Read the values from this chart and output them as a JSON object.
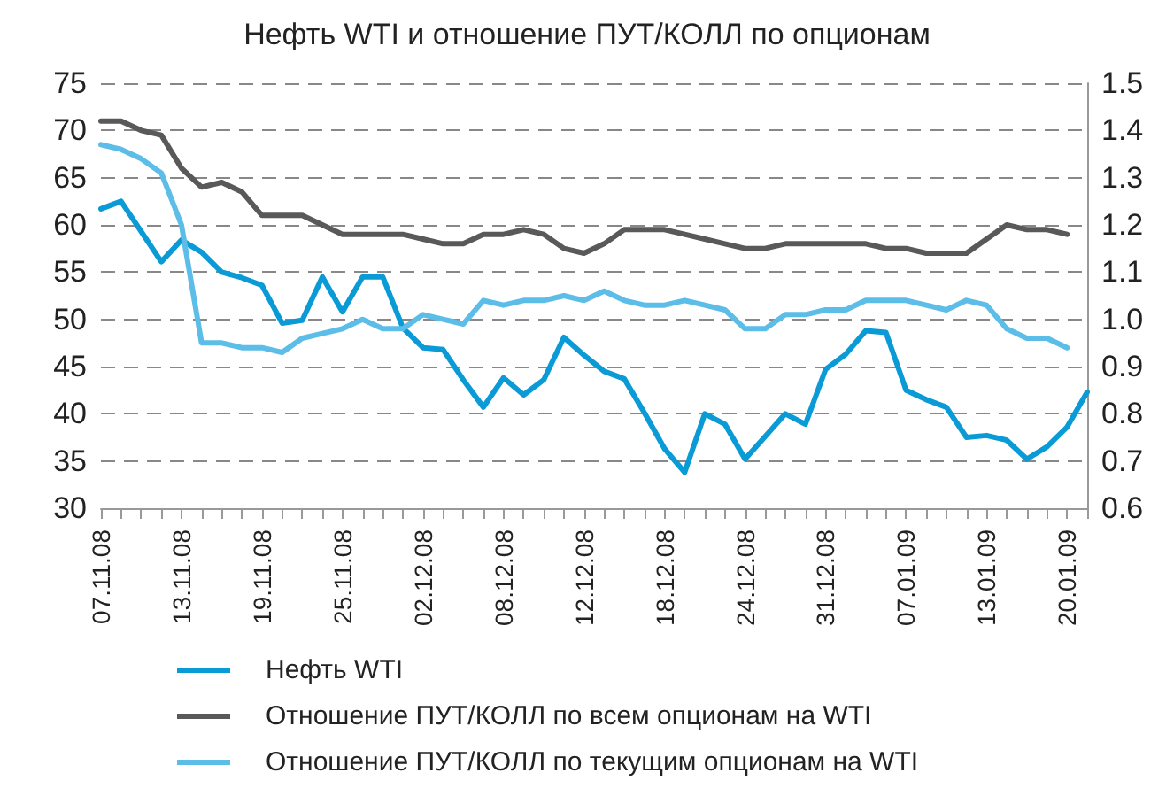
{
  "chart_data": {
    "type": "line",
    "title": "Нефть WTI и отношение ПУТ/КОЛЛ по опционам",
    "categories": [
      "07.11.08",
      null,
      null,
      null,
      "13.11.08",
      null,
      null,
      null,
      "19.11.08",
      null,
      null,
      null,
      "25.11.08",
      null,
      null,
      null,
      "02.12.08",
      null,
      null,
      null,
      "08.12.08",
      null,
      null,
      null,
      "12.12.08",
      null,
      null,
      null,
      "18.12.08",
      null,
      null,
      null,
      "24.12.08",
      null,
      null,
      null,
      "31.12.08",
      null,
      null,
      null,
      "07.01.09",
      null,
      null,
      null,
      "13.01.09",
      null,
      null,
      null,
      "20.01.09",
      null
    ],
    "series": [
      {
        "name": "Нефть WTI",
        "color": "#0a9bd6",
        "values": [
          61.7,
          62.5,
          59.3,
          56.1,
          58.4,
          57.1,
          55.0,
          54.4,
          53.6,
          49.6,
          49.9,
          54.5,
          50.8,
          54.5,
          54.5,
          49.1,
          47.0,
          46.8,
          43.6,
          40.7,
          43.8,
          42.0,
          43.6,
          48.1,
          46.2,
          44.5,
          43.7,
          40.1,
          36.3,
          33.8,
          40.0,
          38.9,
          35.2,
          37.6,
          40.0,
          38.9,
          44.7,
          46.3,
          48.8,
          48.6,
          42.5,
          41.5,
          40.7,
          37.5,
          37.7,
          37.2,
          35.2,
          36.5,
          38.6,
          42.3
        ]
      },
      {
        "name": "Отношение ПУТ/КОЛЛ по всем опционам на WTI",
        "color": "#595959",
        "axis": "y2",
        "values": [
          1.42,
          1.42,
          1.4,
          1.39,
          1.32,
          1.28,
          1.29,
          1.27,
          1.22,
          1.22,
          1.22,
          1.2,
          1.18,
          1.18,
          1.18,
          1.18,
          1.17,
          1.16,
          1.16,
          1.18,
          1.18,
          1.19,
          1.18,
          1.15,
          1.14,
          1.16,
          1.19,
          1.19,
          1.19,
          1.18,
          1.17,
          1.16,
          1.15,
          1.15,
          1.16,
          1.16,
          1.16,
          1.16,
          1.16,
          1.15,
          1.15,
          1.14,
          1.14,
          1.14,
          1.17,
          1.2,
          1.19,
          1.19,
          1.18,
          null
        ]
      },
      {
        "name": "Отношение ПУТ/КОЛЛ по текущим опционам на WTI",
        "color": "#5bbde8",
        "axis": "y2",
        "values": [
          1.37,
          1.36,
          1.34,
          1.31,
          1.2,
          0.95,
          0.95,
          0.94,
          0.94,
          0.93,
          0.96,
          0.97,
          0.98,
          1.0,
          0.98,
          0.98,
          1.01,
          1.0,
          0.99,
          1.04,
          1.03,
          1.04,
          1.04,
          1.05,
          1.04,
          1.06,
          1.04,
          1.03,
          1.03,
          1.04,
          1.03,
          1.02,
          0.98,
          0.98,
          1.01,
          1.01,
          1.02,
          1.02,
          1.04,
          1.04,
          1.04,
          1.03,
          1.02,
          1.04,
          1.03,
          0.98,
          0.96,
          0.96,
          0.94,
          null
        ]
      }
    ],
    "ylim": [
      30,
      75
    ],
    "yticks": [
      30,
      35,
      40,
      45,
      50,
      55,
      60,
      65,
      70,
      75
    ],
    "y2lim": [
      0.6,
      1.5
    ],
    "y2ticks": [
      0.6,
      0.7,
      0.8,
      0.9,
      {
        "value": 1,
        "label": "1.0"
      },
      1.1,
      1.2,
      1.3,
      1.4,
      1.5
    ],
    "grid": "y",
    "legend": "bottom",
    "marker": "none",
    "line_style": "solid"
  }
}
